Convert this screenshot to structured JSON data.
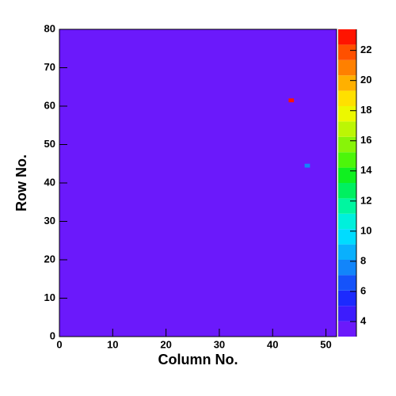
{
  "chart_data": {
    "type": "heatmap",
    "xlabel": "Column No.",
    "ylabel": "Row No.",
    "xlim": [
      0,
      52
    ],
    "ylim": [
      0,
      80
    ],
    "xticks": [
      0,
      10,
      20,
      30,
      40,
      50
    ],
    "yticks": [
      0,
      10,
      20,
      30,
      40,
      50,
      60,
      70,
      80
    ],
    "x": [
      43,
      46
    ],
    "y": [
      61,
      44
    ],
    "values": [
      23,
      8
    ],
    "zlim": [
      3,
      23.4
    ],
    "zticks": [
      4,
      6,
      8,
      10,
      12,
      14,
      16,
      18,
      20,
      22
    ],
    "palette": [
      "#6b19fb",
      "#3d1cfd",
      "#1c2afe",
      "#1553fa",
      "#1285fa",
      "#0ab0fd",
      "#00dcff",
      "#00f0dc",
      "#00f6a0",
      "#00f060",
      "#10f020",
      "#4cf60a",
      "#88f408",
      "#bcf604",
      "#ecf800",
      "#ffe000",
      "#ffb000",
      "#ff8000",
      "#ff5000",
      "#ff1400"
    ]
  }
}
